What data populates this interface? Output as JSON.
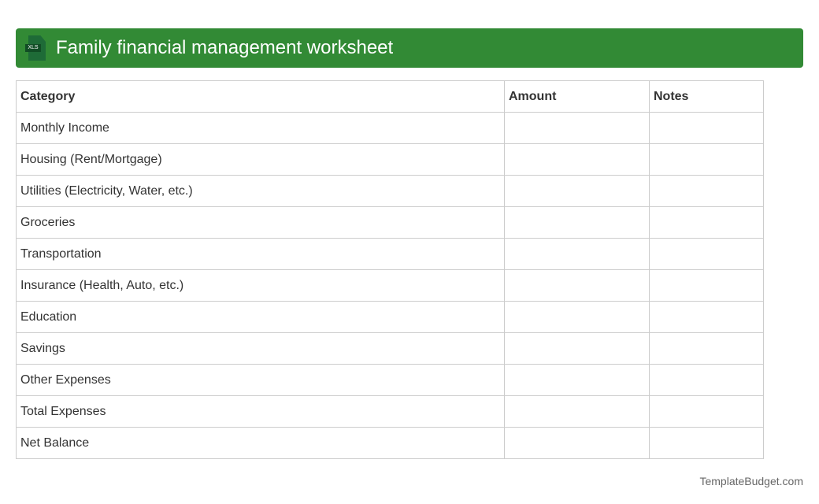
{
  "header": {
    "title": "Family financial management worksheet",
    "icon": "xls-file-icon",
    "icon_label": "XLS",
    "color": "#328a35"
  },
  "table": {
    "headers": [
      "Category",
      "Amount",
      "Notes"
    ],
    "rows": [
      [
        "Monthly Income",
        "",
        ""
      ],
      [
        "Housing (Rent/Mortgage)",
        "",
        ""
      ],
      [
        "Utilities (Electricity, Water, etc.)",
        "",
        ""
      ],
      [
        "Groceries",
        "",
        ""
      ],
      [
        "Transportation",
        "",
        ""
      ],
      [
        "Insurance (Health, Auto, etc.)",
        "",
        ""
      ],
      [
        "Education",
        "",
        ""
      ],
      [
        "Savings",
        "",
        ""
      ],
      [
        "Other Expenses",
        "",
        ""
      ],
      [
        "Total Expenses",
        "",
        ""
      ],
      [
        "Net Balance",
        "",
        ""
      ]
    ]
  },
  "footer": {
    "brand": "TemplateBudget.com"
  }
}
